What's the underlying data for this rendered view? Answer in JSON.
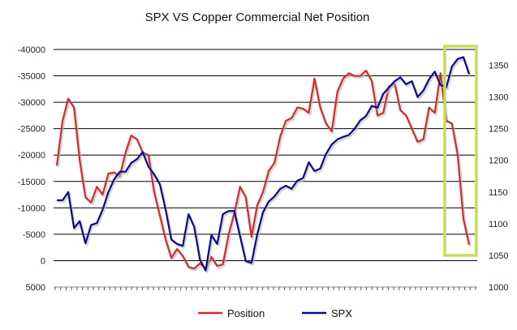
{
  "chart_data": {
    "type": "line",
    "title": "SPX VS Copper Commercial Net Position",
    "grid": true,
    "legend_placement": "bottom-center",
    "y_left": {
      "label": "",
      "ticks": [
        "-40000",
        "-35000",
        "-30000",
        "-25000",
        "-20000",
        "-15000",
        "-10000",
        "-5000",
        "0",
        "5000"
      ],
      "range": [
        5000,
        -40000
      ],
      "inverted": true
    },
    "y_right": {
      "label": "",
      "ticks": [
        "1350",
        "1300",
        "1250",
        "1200",
        "1150",
        "1100",
        "1050",
        "1000"
      ],
      "range": [
        1000,
        1375
      ]
    },
    "x": {
      "tick_count": 78,
      "labels_visible": false
    },
    "series": [
      {
        "name": "Position",
        "color": "#d42a2a",
        "axis": "left",
        "values": [
          -18000,
          -26500,
          -30700,
          -29000,
          -19000,
          -12000,
          -11000,
          -14000,
          -12500,
          -16500,
          -16700,
          -16000,
          -20500,
          -23700,
          -23000,
          -20500,
          -20000,
          -13000,
          -8500,
          -4000,
          -500,
          -2200,
          -900,
          1200,
          1500,
          500,
          1500,
          -700,
          1000,
          700,
          -5000,
          -9000,
          -14000,
          -12000,
          -4500,
          -10500,
          -13000,
          -17000,
          -18500,
          -23500,
          -26500,
          -27000,
          -29000,
          -28800,
          -28000,
          -34500,
          -29000,
          -26000,
          -24500,
          -32000,
          -34500,
          -35500,
          -35000,
          -35000,
          -36000,
          -34000,
          -27500,
          -28000,
          -33000,
          -33500,
          -28500,
          -27500,
          -25000,
          -22500,
          -23000,
          -29000,
          -28000,
          -35500,
          -26500,
          -26000,
          -20000,
          -8000,
          -3000
        ]
      },
      {
        "name": "SPX",
        "color": "#0a0a8a",
        "axis": "right",
        "values": [
          1137,
          1137,
          1150,
          1093,
          1104,
          1069,
          1098,
          1101,
          1122,
          1150,
          1170,
          1182,
          1182,
          1196,
          1202,
          1213,
          1190,
          1178,
          1162,
          1122,
          1075,
          1068,
          1065,
          1115,
          1095,
          1043,
          1026,
          1082,
          1068,
          1115,
          1120,
          1120,
          1080,
          1041,
          1038,
          1083,
          1118,
          1135,
          1143,
          1155,
          1160,
          1155,
          1168,
          1172,
          1197,
          1183,
          1187,
          1210,
          1225,
          1233,
          1237,
          1240,
          1250,
          1263,
          1270,
          1286,
          1283,
          1305,
          1315,
          1325,
          1331,
          1320,
          1325,
          1300,
          1310,
          1328,
          1340,
          1319,
          1315,
          1348,
          1360,
          1363,
          1336
        ]
      }
    ],
    "annotations": [
      {
        "type": "highlight-box",
        "color": "#c4dd5a",
        "covers_last_points": 6
      }
    ]
  }
}
